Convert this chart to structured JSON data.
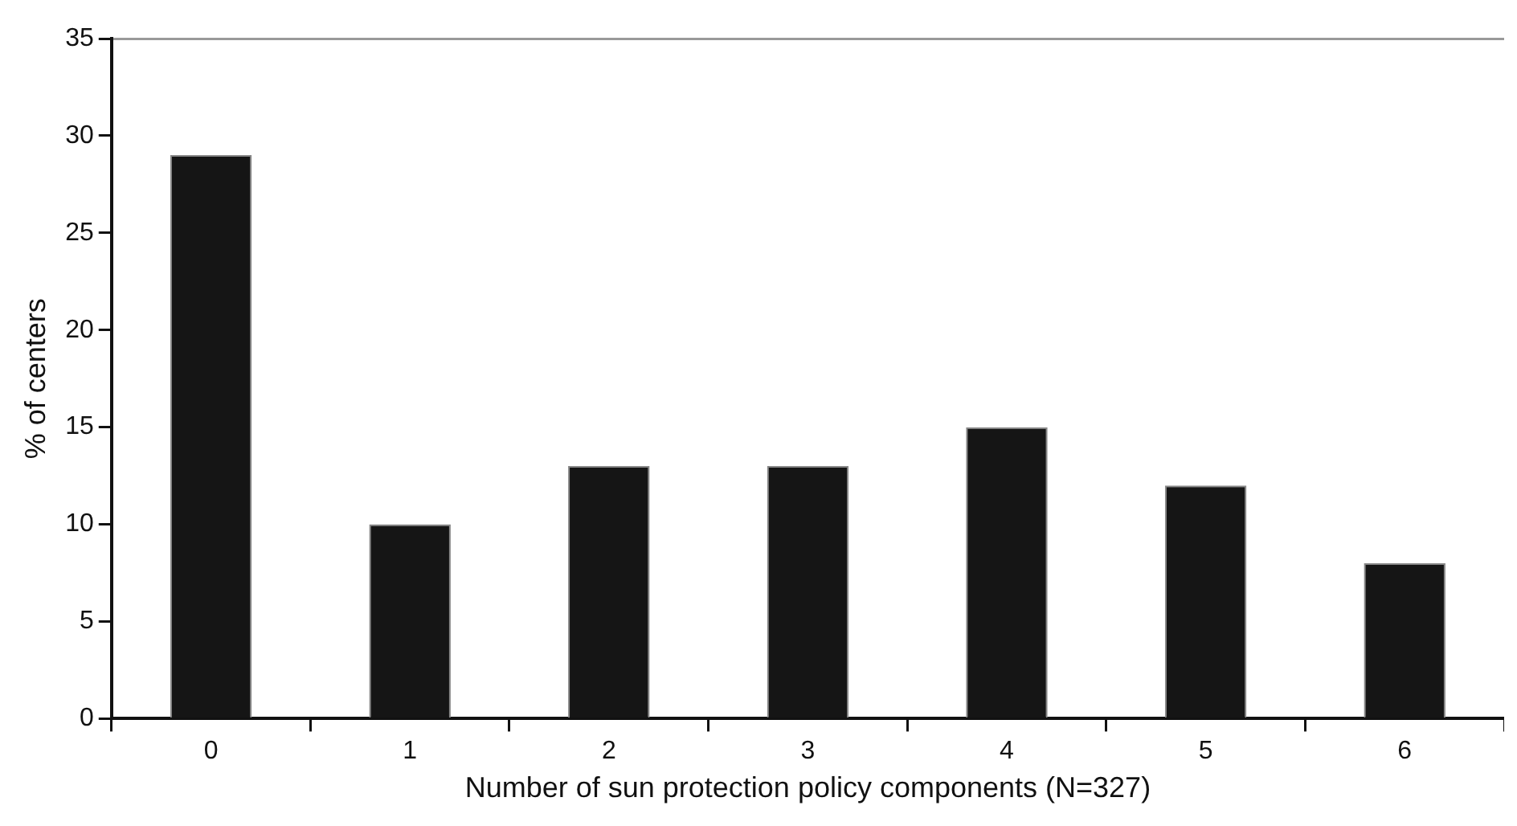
{
  "chart_data": {
    "type": "bar",
    "xlabel": "Number of sun protection policy components (N=327)",
    "ylabel": "% of centers",
    "categories": [
      "0",
      "1",
      "2",
      "3",
      "4",
      "5",
      "6"
    ],
    "values": [
      29,
      10,
      13,
      13,
      15,
      12,
      8
    ],
    "color": "#151515",
    "ylim": [
      0,
      35
    ],
    "yticks": [
      0,
      5,
      10,
      15,
      20,
      25,
      30,
      35
    ],
    "grid": false,
    "legend": false
  }
}
